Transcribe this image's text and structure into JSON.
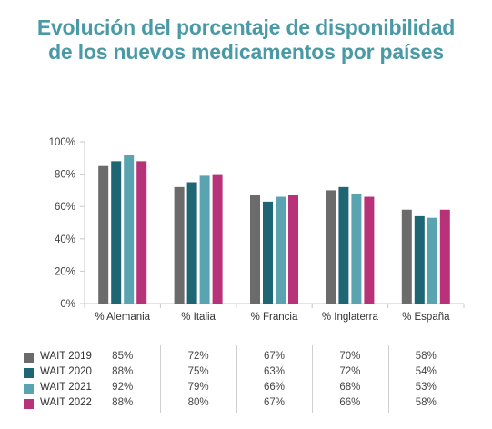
{
  "title": {
    "line1": "Evolución del porcentaje de disponibilidad",
    "line2": "de los nuevos medicamentos por países"
  },
  "colors": {
    "title": "#4a9aa6",
    "WAIT 2019": "#6b6b6b",
    "WAIT 2020": "#1e6674",
    "WAIT 2021": "#5aa4b2",
    "WAIT 2022": "#b8327a"
  },
  "chart_data": {
    "type": "bar",
    "categories": [
      "% Alemania",
      "% Italia",
      "% Francia",
      "% Inglaterra",
      "% España"
    ],
    "series": [
      {
        "name": "WAIT 2019",
        "values": [
          85,
          72,
          67,
          70,
          58
        ],
        "labels": [
          "85%",
          "72%",
          "67%",
          "70%",
          "58%"
        ]
      },
      {
        "name": "WAIT 2020",
        "values": [
          88,
          75,
          63,
          72,
          54
        ],
        "labels": [
          "88%",
          "75%",
          "63%",
          "72%",
          "54%"
        ]
      },
      {
        "name": "WAIT 2021",
        "values": [
          92,
          79,
          66,
          68,
          53
        ],
        "labels": [
          "92%",
          "79%",
          "66%",
          "68%",
          "53%"
        ]
      },
      {
        "name": "WAIT 2022",
        "values": [
          88,
          80,
          67,
          66,
          58
        ],
        "labels": [
          "88%",
          "80%",
          "67%",
          "66%",
          "58%"
        ]
      }
    ],
    "yticks": [
      "0%",
      "20%",
      "40%",
      "60%",
      "80%",
      "100%"
    ],
    "ylim": [
      0,
      100
    ],
    "grid": false,
    "legend": "data table below chart"
  }
}
